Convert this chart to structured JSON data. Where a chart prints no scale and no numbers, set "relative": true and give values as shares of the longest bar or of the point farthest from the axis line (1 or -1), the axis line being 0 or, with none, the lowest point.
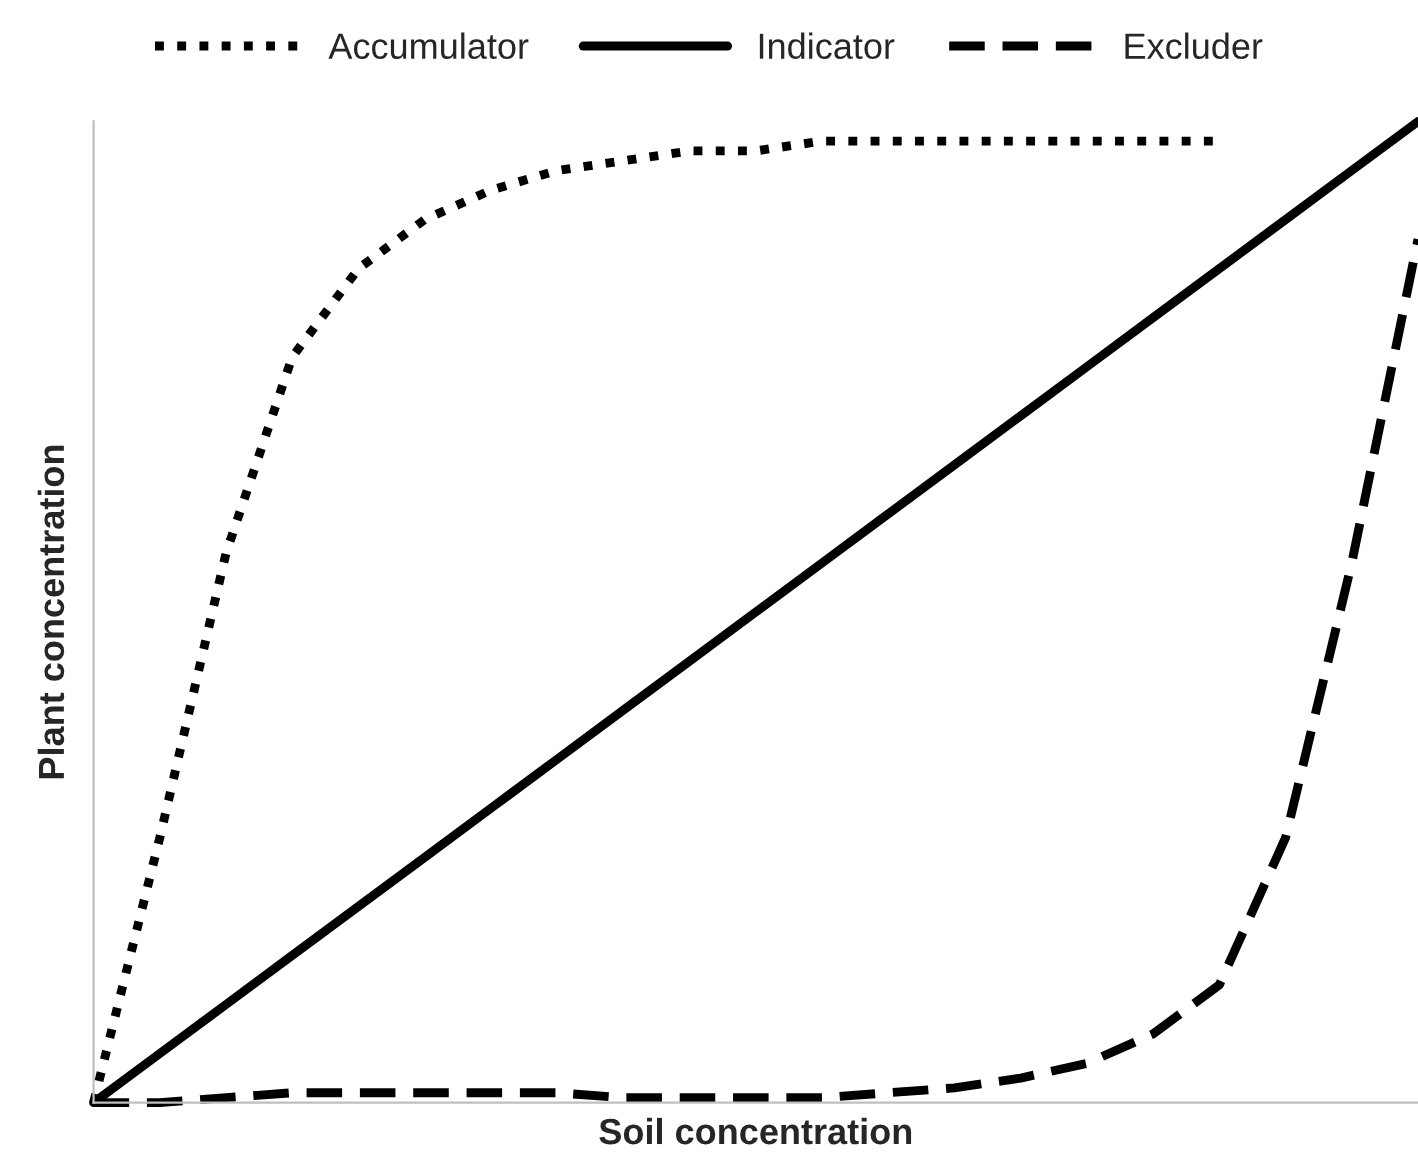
{
  "chart_data": {
    "type": "line",
    "relative": true,
    "xlabel": "Soil concentration",
    "ylabel": "Plant concentration",
    "legend": "top",
    "grid": false,
    "categories": [
      null,
      null,
      null,
      null,
      null,
      null,
      null,
      null,
      null,
      null,
      null,
      null,
      null,
      null,
      null,
      null,
      null,
      null,
      null,
      null,
      null
    ],
    "series": [
      {
        "name": "Accumulator",
        "color": "#000000",
        "line_style": "dotted",
        "values": [
          0,
          0.27,
          0.56,
          0.76,
          0.85,
          0.9,
          0.93,
          0.95,
          0.96,
          0.97,
          0.97,
          0.98,
          0.98,
          0.98,
          0.98,
          0.98,
          0.98,
          0.98,
          null,
          null,
          null
        ]
      },
      {
        "name": "Indicator",
        "color": "#000000",
        "line_style": "solid",
        "values": [
          0,
          0.05,
          0.1,
          0.15,
          0.2,
          0.25,
          0.3,
          0.35,
          0.4,
          0.45,
          0.5,
          0.55,
          0.6,
          0.65,
          0.7,
          0.75,
          0.8,
          0.85,
          0.9,
          0.95,
          1
        ]
      },
      {
        "name": "Excluder",
        "color": "#000000",
        "line_style": "dashed",
        "values": [
          0,
          0,
          0.005,
          0.01,
          0.01,
          0.01,
          0.01,
          0.01,
          0.005,
          0.005,
          0.005,
          0.005,
          0.01,
          0.015,
          0.025,
          0.04,
          0.07,
          0.12,
          0.27,
          0.55,
          0.88
        ]
      }
    ]
  }
}
